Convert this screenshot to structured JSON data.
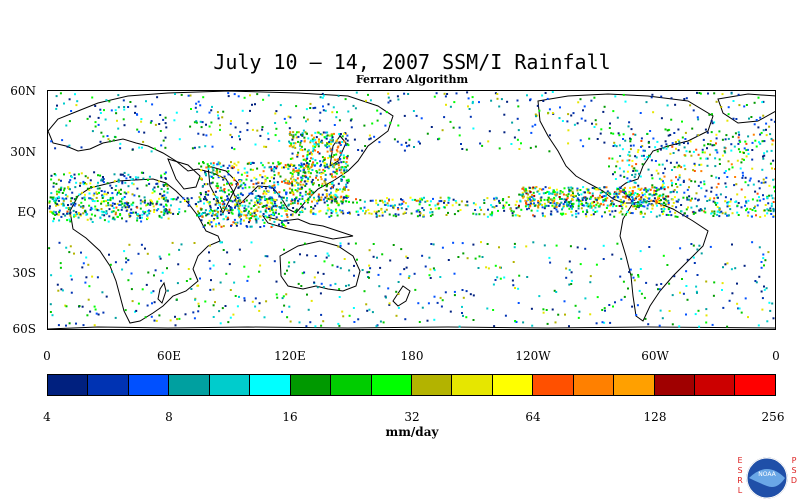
{
  "title": "July 10 – 14, 2007 SSM/I Rainfall",
  "subtitle": "Ferraro Algorithm",
  "map": {
    "lat_labels": [
      "60N",
      "30N",
      "EQ",
      "30S",
      "60S"
    ],
    "lon_labels": [
      "0",
      "60E",
      "120E",
      "180",
      "120W",
      "60W",
      "0"
    ],
    "rain_colors": [
      "#00207f",
      "#0033b3",
      "#0050ff",
      "#00a0a0",
      "#00cccc",
      "#00ffff",
      "#009900",
      "#00cc00",
      "#00ff00",
      "#b3b300",
      "#e6e600",
      "#ffff00",
      "#ff5000",
      "#ff8000",
      "#ffa000",
      "#a00000",
      "#cc0000",
      "#ff0000"
    ],
    "land_color": "#ffffff",
    "coast_color": "#000000"
  },
  "colorbar": {
    "colors": [
      "#00207f",
      "#0033b3",
      "#0050ff",
      "#00a0a0",
      "#00cccc",
      "#00ffff",
      "#009900",
      "#00cc00",
      "#00ff00",
      "#b3b300",
      "#e6e600",
      "#ffff00",
      "#ff5000",
      "#ff8000",
      "#ffa000",
      "#a00000",
      "#cc0000",
      "#ff0000"
    ],
    "tick_labels": [
      "4",
      "8",
      "16",
      "32",
      "64",
      "128",
      "256"
    ],
    "units": "mm/day"
  },
  "logo": {
    "left_letters": [
      "E",
      "S",
      "R",
      "L"
    ],
    "right_letters": [
      "P",
      "S",
      "D"
    ],
    "text": "NOAA"
  }
}
